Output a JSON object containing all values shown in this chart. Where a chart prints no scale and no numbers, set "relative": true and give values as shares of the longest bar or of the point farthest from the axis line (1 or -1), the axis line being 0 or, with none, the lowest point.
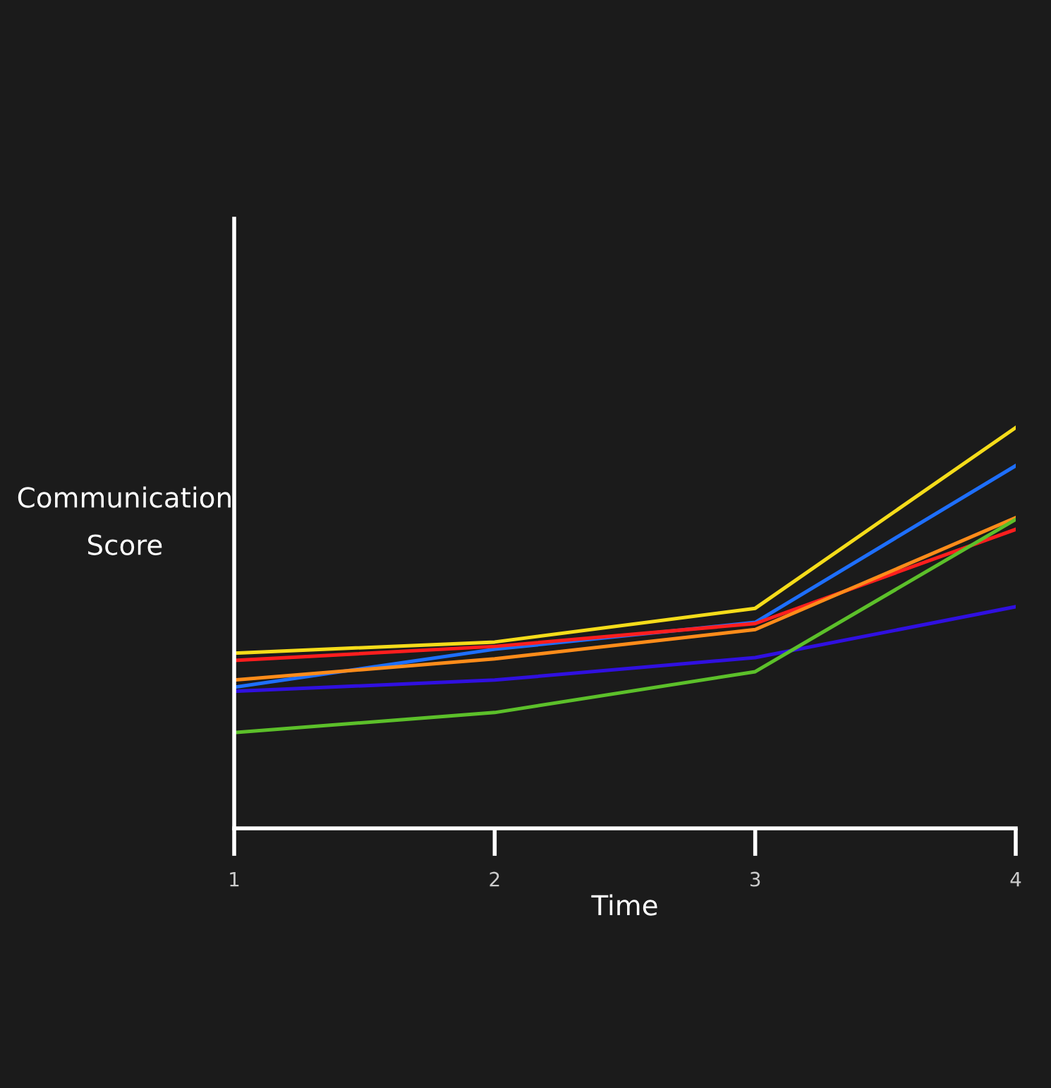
{
  "chart_data": {
    "type": "line",
    "relative": true,
    "xlabel": "Time",
    "ylabel": "Communication\nScore",
    "x": [
      1,
      2,
      3,
      4
    ],
    "xlim": [
      1,
      4
    ],
    "xticks": [
      1,
      2,
      3,
      4
    ],
    "grid": false,
    "legend": false,
    "marker": "none",
    "line_style": "solid",
    "series": [
      {
        "color": "#f5dc1a",
        "values": [
          0.437,
          0.465,
          0.549,
          1
        ]
      },
      {
        "color": "#1e6fff",
        "values": [
          0.352,
          0.447,
          0.514,
          0.905
        ]
      },
      {
        "color": "#ff1e1e",
        "values": [
          0.419,
          0.454,
          0.511,
          0.746
        ]
      },
      {
        "color": "#ff8c1a",
        "values": [
          0.37,
          0.423,
          0.496,
          0.775
        ]
      },
      {
        "color": "#3010e0",
        "values": [
          0.342,
          0.37,
          0.426,
          0.553
        ]
      },
      {
        "color": "#5cc02a",
        "values": [
          0.239,
          0.289,
          0.391,
          0.771
        ]
      }
    ]
  }
}
